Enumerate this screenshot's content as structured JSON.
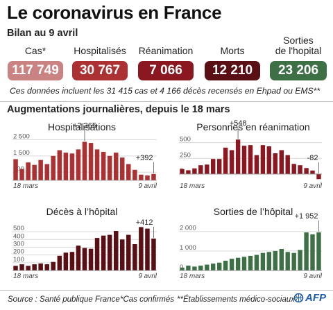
{
  "title": "Le coronavirus en France",
  "subtitle": "Bilan au 9 avril",
  "stats": [
    {
      "label1": "Cas*",
      "label2": "",
      "value": "117 749",
      "color": "#c98383"
    },
    {
      "label1": "Hospitalisés",
      "label2": "",
      "value": "30 767",
      "color": "#ab3133"
    },
    {
      "label1": "Réanimation",
      "label2": "",
      "value": "7 066",
      "color": "#8b1720"
    },
    {
      "label1": "Morts",
      "label2": "",
      "value": "12 210",
      "color": "#5a0f14"
    },
    {
      "label1": "Sorties",
      "label2": "de l'hopital",
      "value": "23 206",
      "color": "#3d7045"
    }
  ],
  "note": "Ces données incluent les 31 415 cas et 4 166 décès recensés en Ehpad ou EMS**",
  "section_title": "Augmentations journalières, depuis le 18 mars",
  "footer": {
    "source": "Source : Santé publique France",
    "cas_note": "*Cas confirmés",
    "ems_note": "**Établissements médico-sociaux",
    "logo": "AFP"
  },
  "chart_data": [
    {
      "type": "bar",
      "title": "Hospitalisations",
      "color": "#ab3133",
      "x_start": "18 mars",
      "x_end": "9 avril",
      "yticks": [
        500,
        1500,
        2500
      ],
      "ytick_labels": [
        "500",
        "1 500",
        "2 500"
      ],
      "ylim": [
        0,
        2900
      ],
      "values": [
        1300,
        700,
        1100,
        950,
        1250,
        1000,
        1500,
        1850,
        1700,
        1650,
        1900,
        2365,
        2300,
        1900,
        1750,
        1500,
        1700,
        1400,
        1000,
        650,
        350,
        300,
        392
      ],
      "annotations": [
        {
          "index": 11,
          "label": "+2 365"
        },
        {
          "index": 22,
          "label": "+392"
        }
      ]
    },
    {
      "type": "bar",
      "title": "Personnes en réanimation",
      "color": "#8b1720",
      "x_start": "18 mars",
      "x_end": "9 avril",
      "yticks": [
        0,
        250,
        500
      ],
      "ytick_labels": [
        "0",
        "250",
        "500"
      ],
      "ylim": [
        -100,
        650
      ],
      "values": [
        80,
        60,
        90,
        140,
        150,
        240,
        240,
        420,
        380,
        548,
        450,
        460,
        300,
        460,
        440,
        330,
        380,
        300,
        160,
        140,
        95,
        55,
        -82
      ],
      "annotations": [
        {
          "index": 9,
          "label": "+548"
        },
        {
          "index": 22,
          "label": "-82"
        }
      ]
    },
    {
      "type": "bar",
      "title": "Décès à l’hôpital",
      "color": "#5a0f14",
      "x_start": "18 mars",
      "x_end": "9 avril",
      "yticks": [
        100,
        200,
        300,
        400,
        500
      ],
      "ytick_labels": [
        "100",
        "200",
        "300",
        "400",
        "500"
      ],
      "ylim": [
        0,
        680
      ],
      "values": [
        60,
        80,
        60,
        80,
        90,
        80,
        110,
        190,
        230,
        240,
        320,
        290,
        280,
        420,
        450,
        460,
        510,
        400,
        460,
        340,
        560,
        540,
        412
      ],
      "annotations": [
        {
          "index": 22,
          "label": "+412"
        }
      ]
    },
    {
      "type": "bar",
      "title": "Sorties de l’hôpital",
      "color": "#3d7045",
      "x_start": "18 mars",
      "x_end": "9 avril",
      "yticks": [
        0,
        1000,
        2000
      ],
      "ytick_labels": [
        "0",
        "1 000",
        "2 000"
      ],
      "ylim": [
        0,
        2700
      ],
      "values": [
        150,
        250,
        200,
        250,
        300,
        350,
        400,
        500,
        600,
        650,
        700,
        750,
        800,
        900,
        950,
        1000,
        1100,
        950,
        900,
        1050,
        1950,
        1850,
        1952
      ],
      "annotations": [
        {
          "index": 22,
          "label": "+1 952"
        }
      ]
    }
  ]
}
